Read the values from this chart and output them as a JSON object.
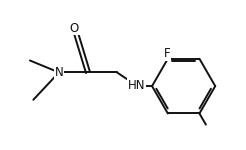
{
  "bg_color": "#ffffff",
  "line_color": "#111111",
  "line_width": 1.4,
  "font_size": 8.5,
  "label_O": "O",
  "label_N": "N",
  "label_HN": "HN",
  "label_F": "F",
  "xlim": [
    0.0,
    1.35
  ],
  "ylim": [
    0.15,
    1.02
  ]
}
